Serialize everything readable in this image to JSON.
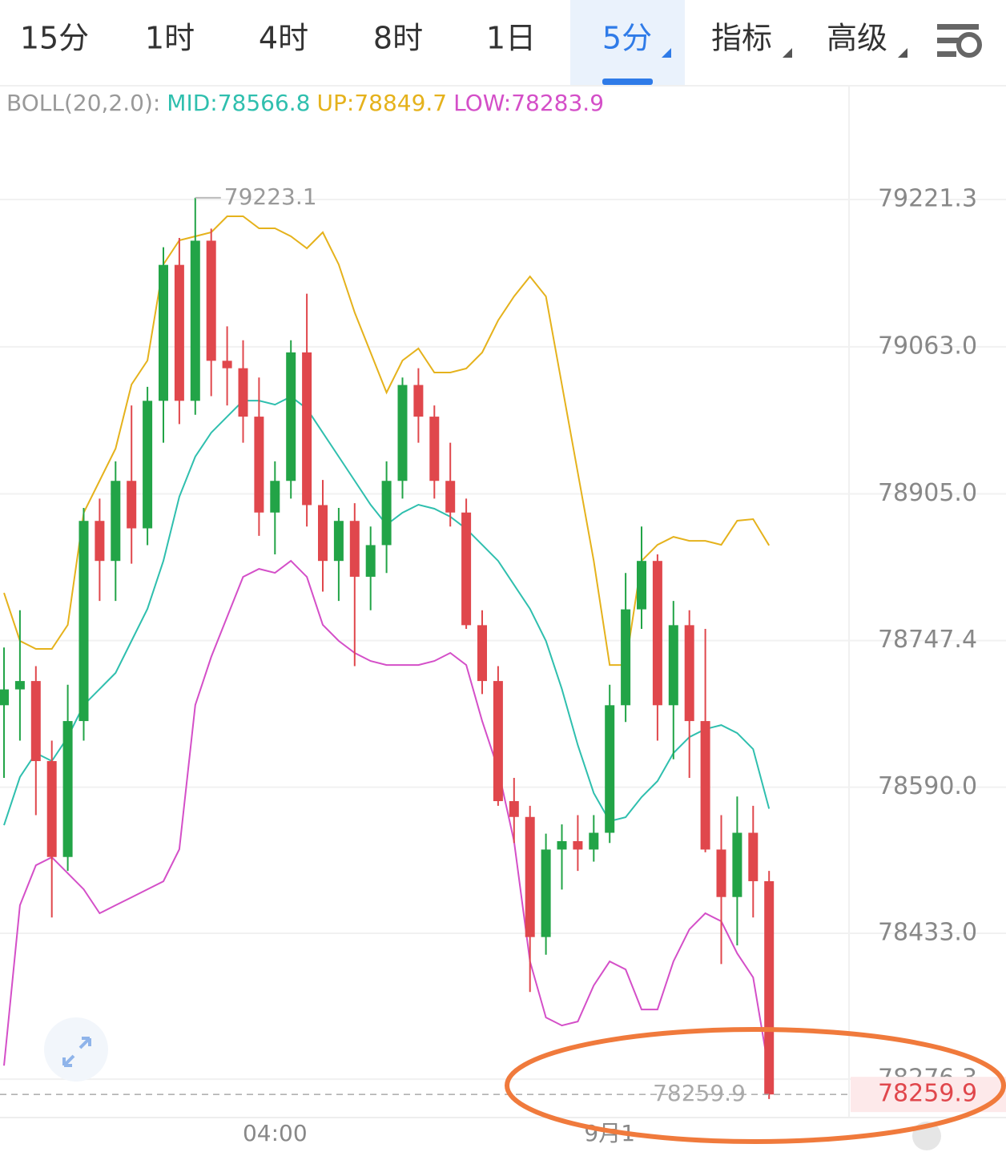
{
  "tabs": [
    "15分",
    "1时",
    "4时",
    "8时",
    "1日",
    "5分",
    "指标",
    "高级"
  ],
  "chart_data": {
    "type": "candlestick",
    "indicator_label": "BOLL(20,2.0):",
    "bands": [
      {
        "name": "MID:78566.8",
        "color": "#2fbfae",
        "values": [
          78549.1,
          78600.8,
          78626.6,
          78618.0,
          78643.8,
          78678.2,
          78695.4,
          78712.7,
          78747.1,
          78781.5,
          78833.1,
          78902.0,
          78945.0,
          78970.8,
          78988.0,
          79005.2,
          79005.2,
          79000.9,
          79009.5,
          78996.6,
          78970.8,
          78945.0,
          78919.2,
          78893.4,
          78871.9,
          78884.8,
          78893.4,
          78889.1,
          78880.5,
          78867.5,
          78850.3,
          78833.1,
          78807.3,
          78781.5,
          78747.1,
          78695.4,
          78635.2,
          78583.6,
          78553.4,
          78557.7,
          78579.3,
          78596.5,
          78626.6,
          78643.8,
          78652.4,
          78656.7,
          78648.1,
          78630.9,
          78566.8
        ]
      },
      {
        "name": "UP:78849.7",
        "color": "#e5b21c",
        "values": [
          78798.7,
          78747.1,
          78738.5,
          78738.5,
          78764.3,
          78884.8,
          78919.2,
          78953.6,
          79022.5,
          79048.3,
          79151.5,
          79177.4,
          79181.7,
          79186.0,
          79203.2,
          79203.2,
          79190.3,
          79190.3,
          79181.7,
          79168.8,
          79186.0,
          79151.5,
          79099.9,
          79056.9,
          79013.9,
          79048.3,
          79061.2,
          79035.4,
          79035.4,
          79039.7,
          79056.9,
          79091.3,
          79117.1,
          79138.6,
          79117.1,
          79022.5,
          78927.8,
          78833.1,
          78721.2,
          78721.2,
          78833.1,
          78850.3,
          78858.9,
          78854.6,
          78854.6,
          78850.3,
          78876.2,
          78877.9,
          78849.7
        ]
      },
      {
        "name": "LOW:78283.9",
        "color": "#d44fc8",
        "values": [
          78290.9,
          78463.1,
          78506.1,
          78514.7,
          78497.5,
          78480.3,
          78454.5,
          78463.1,
          78471.7,
          78480.3,
          78488.9,
          78523.3,
          78678.2,
          78729.9,
          78772.9,
          78815.9,
          78824.5,
          78820.2,
          78833.1,
          78815.9,
          78764.3,
          78747.1,
          78734.2,
          78725.5,
          78721.2,
          78721.2,
          78721.2,
          78725.5,
          78734.2,
          78721.2,
          78661.0,
          78609.4,
          78531.9,
          78402.8,
          78342.6,
          78334.0,
          78338.3,
          78377.0,
          78402.8,
          78394.2,
          78351.2,
          78351.2,
          78402.8,
          78437.2,
          78454.5,
          78445.9,
          78411.4,
          78385.6,
          78283.9
        ]
      }
    ],
    "up_color": "#22a447",
    "down_color": "#e0474c",
    "candles": [
      [
        78678,
        78740,
        78600,
        78695
      ],
      [
        78695,
        78780,
        78640,
        78704
      ],
      [
        78704,
        78720,
        78560,
        78618
      ],
      [
        78618,
        78640,
        78450,
        78515
      ],
      [
        78515,
        78700,
        78500,
        78661
      ],
      [
        78661,
        78890,
        78640,
        78876
      ],
      [
        78876,
        78900,
        78790,
        78833
      ],
      [
        78833,
        78940,
        78790,
        78919
      ],
      [
        78919,
        79000,
        78830,
        78868
      ],
      [
        78868,
        79020,
        78850,
        79005
      ],
      [
        79005,
        79170,
        78960,
        79151
      ],
      [
        79151,
        79180,
        78980,
        79005
      ],
      [
        79005,
        79223.1,
        78990,
        79177
      ],
      [
        79177,
        79190,
        79010,
        79048
      ],
      [
        79048,
        79085,
        79000,
        79040
      ],
      [
        79040,
        79070,
        78960,
        78988
      ],
      [
        78988,
        79030,
        78860,
        78885
      ],
      [
        78885,
        78940,
        78840,
        78919
      ],
      [
        78919,
        79070,
        78900,
        79057
      ],
      [
        79057,
        79120,
        78870,
        78893
      ],
      [
        78893,
        78920,
        78800,
        78833
      ],
      [
        78833,
        78890,
        78790,
        78876
      ],
      [
        78876,
        78895,
        78720,
        78816
      ],
      [
        78816,
        78870,
        78780,
        78850
      ],
      [
        78850,
        78940,
        78820,
        78919
      ],
      [
        78919,
        79030,
        78900,
        79022
      ],
      [
        79022,
        79040,
        78960,
        78988
      ],
      [
        78988,
        79000,
        78900,
        78919
      ],
      [
        78919,
        78960,
        78870,
        78885
      ],
      [
        78885,
        78900,
        78760,
        78764
      ],
      [
        78764,
        78780,
        78690,
        78704
      ],
      [
        78704,
        78720,
        78570,
        78575
      ],
      [
        78575,
        78600,
        78530,
        78558
      ],
      [
        78558,
        78570,
        78370,
        78429
      ],
      [
        78429,
        78540,
        78410,
        78523
      ],
      [
        78523,
        78550,
        78480,
        78532
      ],
      [
        78532,
        78560,
        78500,
        78523
      ],
      [
        78523,
        78560,
        78510,
        78541
      ],
      [
        78541,
        78700,
        78530,
        78678
      ],
      [
        78678,
        78820,
        78660,
        78781
      ],
      [
        78781,
        78870,
        78760,
        78833
      ],
      [
        78833,
        78840,
        78640,
        78678
      ],
      [
        78678,
        78790,
        78620,
        78764
      ],
      [
        78764,
        78780,
        78600,
        78661
      ],
      [
        78661,
        78760,
        78520,
        78523
      ],
      [
        78523,
        78560,
        78400,
        78472
      ],
      [
        78472,
        78580,
        78420,
        78541
      ],
      [
        78541,
        78570,
        78450,
        78489
      ],
      [
        78489,
        78500,
        78255,
        78259.9
      ]
    ],
    "categories": [
      null,
      null,
      null,
      null,
      null,
      null,
      null,
      null,
      null,
      null,
      null,
      null,
      null,
      null,
      null,
      null,
      null,
      "04:00",
      null,
      null,
      null,
      null,
      null,
      null,
      null,
      null,
      null,
      null,
      null,
      null,
      null,
      null,
      null,
      null,
      null,
      null,
      null,
      null,
      "9月1",
      null,
      null,
      null,
      null,
      null,
      null,
      null,
      null,
      null,
      null
    ],
    "ylim": [
      78235.1,
      79342.6
    ],
    "yticks": [
      79221.3,
      {
        "value": 79063,
        "label": "79063.0"
      },
      {
        "value": 78905,
        "label": "78905.0"
      },
      78747.4,
      {
        "value": 78590,
        "label": "78590.0"
      },
      {
        "value": 78433,
        "label": "78433.0"
      },
      78276.3
    ],
    "grid": true,
    "high_marker": 79223.1,
    "last_price": 78259.9
  }
}
